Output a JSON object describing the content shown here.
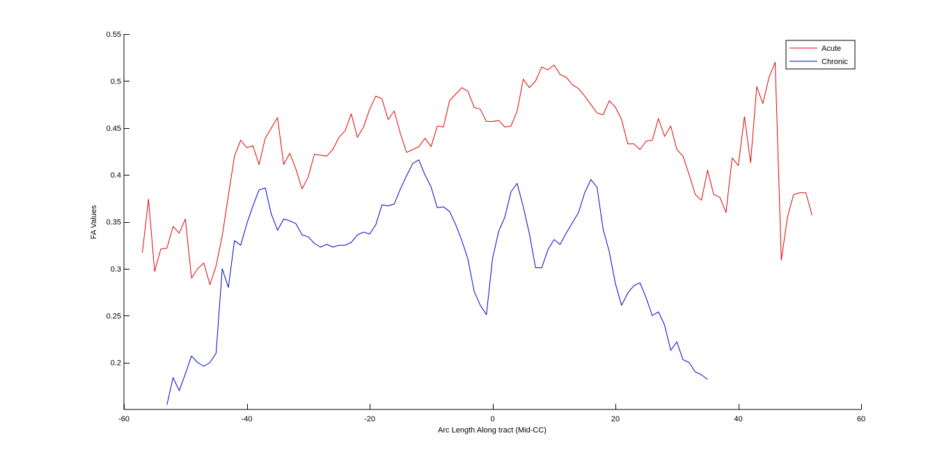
{
  "chart_data": {
    "type": "line",
    "xlabel": "Arc Length Along tract (Mid-CC)",
    "ylabel": "FA Values",
    "xlim": [
      -60,
      60
    ],
    "ylim": [
      0.15,
      0.55
    ],
    "xticks": [
      -60,
      -40,
      -20,
      0,
      20,
      40,
      60
    ],
    "yticks": [
      0.2,
      0.25,
      0.3,
      0.35,
      0.4,
      0.45,
      0.5,
      0.55
    ],
    "ytick_labels": [
      "0.2",
      "0.25",
      "0.3",
      "0.35",
      "0.4",
      "0.45",
      "0.5",
      "0.55"
    ],
    "grid": false,
    "legend_position": "top-right",
    "series": [
      {
        "name": "Acute",
        "color": "#e00000",
        "x": [
          -57,
          -56,
          -55,
          -54,
          -53,
          -52,
          -51,
          -50,
          -49,
          -48,
          -47,
          -46,
          -45,
          -44,
          -43,
          -42,
          -41,
          -40,
          -39,
          -38,
          -37,
          -36,
          -35,
          -34,
          -33,
          -32,
          -31,
          -30,
          -29,
          -28,
          -27,
          -26,
          -25,
          -24,
          -23,
          -22,
          -21,
          -20,
          -19,
          -18,
          -17,
          -16,
          -15,
          -14,
          -13,
          -12,
          -11,
          -10,
          -9,
          -8,
          -7,
          -6,
          -5,
          -4,
          -3,
          -2,
          -1,
          0,
          1,
          2,
          3,
          4,
          5,
          6,
          7,
          8,
          9,
          10,
          11,
          12,
          13,
          14,
          15,
          16,
          17,
          18,
          19,
          20,
          21,
          22,
          23,
          24,
          25,
          26,
          27,
          28,
          29,
          30,
          31,
          32,
          33,
          34,
          35,
          36,
          37,
          38,
          39,
          40,
          41,
          42,
          43,
          44,
          45,
          46,
          47,
          48,
          49,
          50,
          51,
          52
        ],
        "y": [
          0.317,
          0.374,
          0.297,
          0.321,
          0.322,
          0.345,
          0.338,
          0.353,
          0.29,
          0.3,
          0.306,
          0.283,
          0.303,
          0.335,
          0.378,
          0.42,
          0.437,
          0.429,
          0.431,
          0.411,
          0.439,
          0.45,
          0.461,
          0.411,
          0.423,
          0.406,
          0.385,
          0.398,
          0.422,
          0.421,
          0.42,
          0.427,
          0.44,
          0.447,
          0.465,
          0.44,
          0.451,
          0.47,
          0.484,
          0.481,
          0.459,
          0.468,
          0.444,
          0.424,
          0.427,
          0.43,
          0.439,
          0.43,
          0.452,
          0.451,
          0.479,
          0.486,
          0.493,
          0.489,
          0.472,
          0.47,
          0.457,
          0.457,
          0.458,
          0.451,
          0.452,
          0.468,
          0.502,
          0.493,
          0.5,
          0.515,
          0.512,
          0.517,
          0.507,
          0.504,
          0.496,
          0.492,
          0.484,
          0.475,
          0.466,
          0.464,
          0.479,
          0.472,
          0.459,
          0.433,
          0.433,
          0.427,
          0.436,
          0.437,
          0.46,
          0.441,
          0.452,
          0.427,
          0.42,
          0.4,
          0.379,
          0.373,
          0.405,
          0.379,
          0.376,
          0.36,
          0.418,
          0.41,
          0.462,
          0.413,
          0.494,
          0.476,
          0.504,
          0.52,
          0.309,
          0.355,
          0.379,
          0.381,
          0.381,
          0.357
        ]
      },
      {
        "name": "Chronic",
        "color": "#0000cc",
        "x": [
          -53,
          -52,
          -51,
          -50,
          -49,
          -48,
          -47,
          -46,
          -45,
          -44,
          -43,
          -42,
          -41,
          -40,
          -39,
          -38,
          -37,
          -36,
          -35,
          -34,
          -33,
          -32,
          -31,
          -30,
          -29,
          -28,
          -27,
          -26,
          -25,
          -24,
          -23,
          -22,
          -21,
          -20,
          -19,
          -18,
          -17,
          -16,
          -15,
          -14,
          -13,
          -12,
          -11,
          -10,
          -9,
          -8,
          -7,
          -6,
          -5,
          -4,
          -3,
          -2,
          -1,
          0,
          1,
          2,
          3,
          4,
          5,
          6,
          7,
          8,
          9,
          10,
          11,
          12,
          13,
          14,
          15,
          16,
          17,
          18,
          19,
          20,
          21,
          22,
          23,
          24,
          25,
          26,
          27,
          28,
          29,
          30,
          31,
          32,
          33,
          34,
          35
        ],
        "y": [
          0.155,
          0.184,
          0.17,
          0.188,
          0.207,
          0.2,
          0.196,
          0.2,
          0.21,
          0.3,
          0.28,
          0.33,
          0.325,
          0.348,
          0.367,
          0.384,
          0.386,
          0.358,
          0.341,
          0.353,
          0.351,
          0.348,
          0.336,
          0.334,
          0.327,
          0.323,
          0.326,
          0.323,
          0.325,
          0.325,
          0.328,
          0.336,
          0.339,
          0.337,
          0.347,
          0.368,
          0.367,
          0.369,
          0.385,
          0.399,
          0.412,
          0.416,
          0.4,
          0.387,
          0.365,
          0.366,
          0.361,
          0.347,
          0.33,
          0.31,
          0.276,
          0.261,
          0.251,
          0.311,
          0.34,
          0.355,
          0.382,
          0.391,
          0.366,
          0.337,
          0.301,
          0.301,
          0.32,
          0.331,
          0.326,
          0.338,
          0.349,
          0.36,
          0.381,
          0.395,
          0.387,
          0.342,
          0.318,
          0.284,
          0.261,
          0.274,
          0.282,
          0.285,
          0.269,
          0.25,
          0.254,
          0.24,
          0.213,
          0.222,
          0.203,
          0.2,
          0.19,
          0.187,
          0.182
        ]
      }
    ]
  }
}
